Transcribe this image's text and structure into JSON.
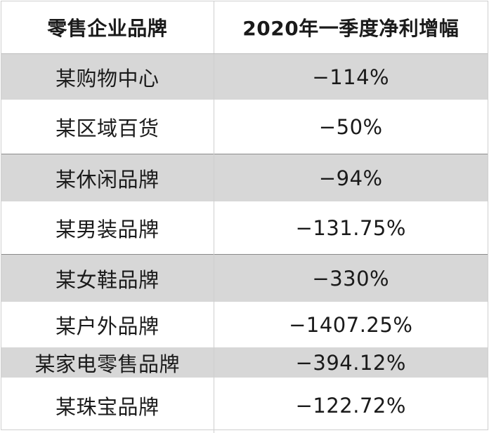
{
  "table": {
    "headers": [
      "零售企业品牌",
      "2020年一季度净利增幅"
    ],
    "rows": [
      {
        "brand": "某购物中心",
        "change": "−114%"
      },
      {
        "brand": "某区域百货",
        "change": "−50%"
      },
      {
        "brand": "某休闲品牌",
        "change": "−94%"
      },
      {
        "brand": "某男装品牌",
        "change": "−131.75%"
      },
      {
        "brand": "某女鞋品牌",
        "change": "−330%"
      },
      {
        "brand": "某户外品牌",
        "change": "−1407.25%"
      },
      {
        "brand": "某家电零售品牌",
        "change": "−394.12%"
      },
      {
        "brand": "某珠宝品牌",
        "change": "−122.72%"
      }
    ]
  }
}
